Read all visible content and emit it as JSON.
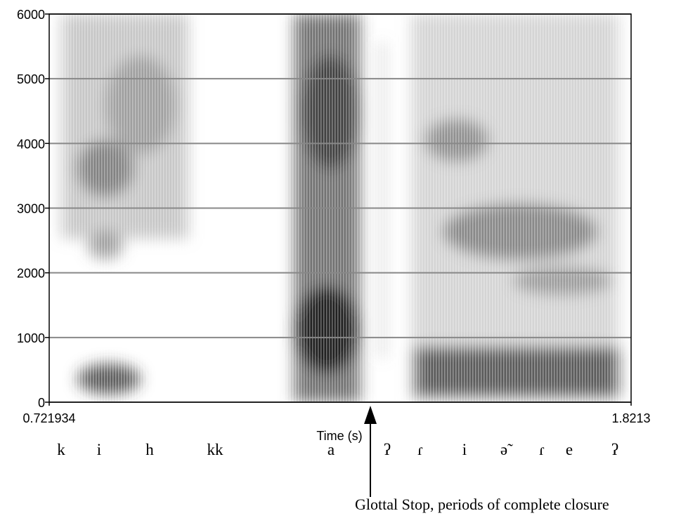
{
  "chart_data": {
    "type": "spectrogram",
    "xlabel": "Time (s)",
    "xlim": [
      0.721934,
      1.8213
    ],
    "xticks": [
      0.721934,
      1.8213
    ],
    "ylim": [
      0,
      6000
    ],
    "yticks": [
      0,
      1000,
      2000,
      3000,
      4000,
      5000,
      6000
    ],
    "grid": true,
    "segments": [
      "k",
      "i",
      "h",
      "kk",
      "a",
      "ʔ",
      "ɾ",
      "i",
      "ə̃",
      "ɾ",
      "e",
      "ʔ"
    ],
    "annotation": "Glottal Stop, periods of complete closure"
  }
}
